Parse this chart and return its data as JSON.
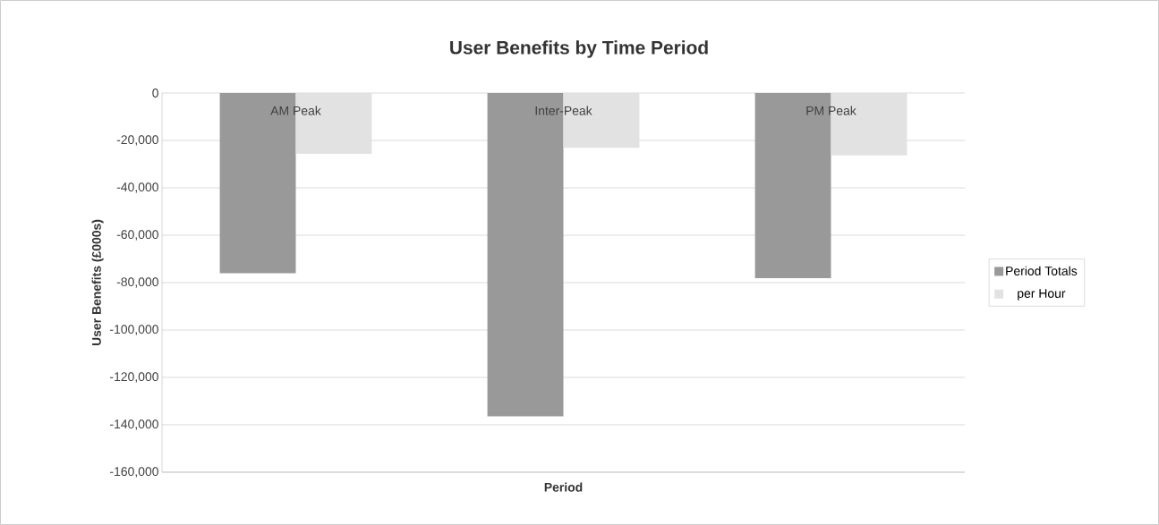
{
  "chart_data": {
    "type": "bar",
    "title": "User Benefits by Time Period",
    "xlabel": "Period",
    "ylabel": "User Benefits (£000s)",
    "categories": [
      "AM Peak",
      "Inter-Peak",
      "PM Peak"
    ],
    "series": [
      {
        "name": "Period Totals",
        "color": "#999999",
        "values": [
          -76000,
          -136400,
          -78100
        ]
      },
      {
        "name": "per Hour",
        "color": "#e2e2e2",
        "values": [
          -25700,
          -23100,
          -26300
        ]
      }
    ],
    "ylim": [
      -160000,
      0
    ],
    "yticks": [
      {
        "value": -160000,
        "label": "-160,000"
      },
      {
        "value": -140000,
        "label": "-140,000"
      },
      {
        "value": -120000,
        "label": "-120,000"
      },
      {
        "value": -100000,
        "label": "-100,000"
      },
      {
        "value": -80000,
        "label": "-80,000"
      },
      {
        "value": -60000,
        "label": "-60,000"
      },
      {
        "value": -40000,
        "label": "-40,000"
      },
      {
        "value": -20000,
        "label": "-20,000"
      },
      0
    ],
    "grid": "y",
    "legend": "right"
  }
}
